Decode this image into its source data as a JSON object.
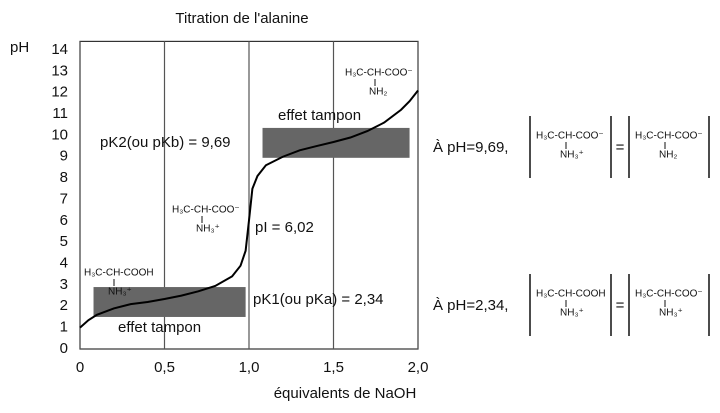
{
  "chart_data": {
    "type": "line",
    "title": "Titration de l'alanine",
    "x_label": "équivalents de NaOH",
    "y_label": "pH",
    "x": [
      0,
      0.05,
      0.1,
      0.2,
      0.3,
      0.4,
      0.5,
      0.6,
      0.7,
      0.8,
      0.9,
      0.95,
      0.98,
      1.0,
      1.02,
      1.05,
      1.1,
      1.2,
      1.3,
      1.4,
      1.5,
      1.6,
      1.7,
      1.8,
      1.9,
      1.95,
      2.0
    ],
    "values": [
      1.0,
      1.35,
      1.6,
      1.9,
      2.1,
      2.2,
      2.34,
      2.5,
      2.7,
      2.95,
      3.4,
      3.9,
      4.6,
      6.02,
      7.5,
      8.1,
      8.6,
      9.0,
      9.3,
      9.5,
      9.69,
      9.9,
      10.2,
      10.6,
      11.2,
      11.6,
      12.1
    ],
    "color": "#000000",
    "xlim": [
      0,
      2
    ],
    "ylim": [
      0,
      14.4
    ],
    "xticks": [
      0,
      {
        "value": 0.5,
        "label": "0,5"
      },
      {
        "value": 1,
        "label": "1,0"
      },
      {
        "value": 1.5,
        "label": "1,5"
      },
      {
        "value": 2,
        "label": "2,0"
      }
    ],
    "yticks": [
      0,
      1,
      2,
      3,
      4,
      5,
      6,
      7,
      8,
      9,
      10,
      11,
      12,
      13,
      14
    ],
    "grid": "x",
    "shaded_regions": [
      {
        "label": "effet tampon",
        "x": [
          0.08,
          0.98
        ],
        "y": [
          1.5,
          2.9
        ],
        "color": "#666666"
      },
      {
        "label": "effet tampon",
        "x": [
          1.08,
          1.95
        ],
        "y": [
          8.95,
          10.35
        ],
        "color": "#666666"
      }
    ],
    "annotations": [
      "pK2(ou pKb) = 9,69",
      "pI = 6,02",
      "pK1(ou pKa) = 2,34"
    ],
    "structures": [
      {
        "top": "H₃C-CH-COOH",
        "bottom": "NH₃⁺"
      },
      {
        "top": "H₃C-CH-COO⁻",
        "bottom": "NH₃⁺"
      },
      {
        "top": "H₃C-CH-COO⁻",
        "bottom": "NH₂"
      }
    ],
    "equations": [
      {
        "label": "À pH=9,69,",
        "left": {
          "top": "H₃C-CH-COO⁻",
          "bottom": "NH₃⁺"
        },
        "equals": "=",
        "right": {
          "top": "H₃C-CH-COO⁻",
          "bottom": "NH₂"
        }
      },
      {
        "label": "À pH=2,34,",
        "left": {
          "top": "H₃C-CH-COOH",
          "bottom": "NH₃⁺"
        },
        "equals": "=",
        "right": {
          "top": "H₃C-CH-COO⁻",
          "bottom": "NH₃⁺"
        }
      }
    ]
  }
}
